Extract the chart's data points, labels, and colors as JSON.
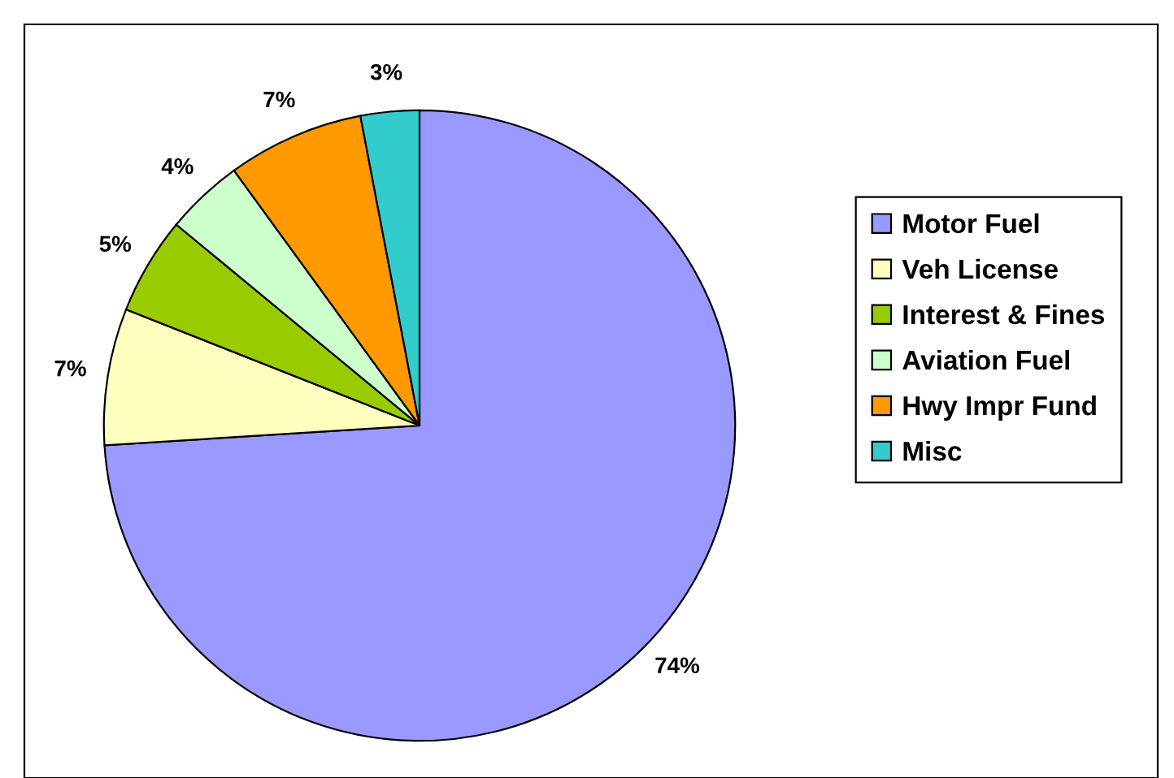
{
  "chart_data": {
    "type": "pie",
    "categories": [
      "Motor Fuel",
      "Veh License",
      "Interest & Fines",
      "Aviation Fuel",
      "Hwy Impr Fund",
      "Misc"
    ],
    "values": [
      74,
      7,
      5,
      4,
      7,
      3
    ],
    "colors": [
      "#9999ff",
      "#ffffc0",
      "#99cc00",
      "#ccffcc",
      "#ff9900",
      "#33cccc"
    ],
    "value_labels": [
      "74%",
      "7%",
      "5%",
      "4%",
      "7%",
      "3%"
    ],
    "legend": "right"
  }
}
